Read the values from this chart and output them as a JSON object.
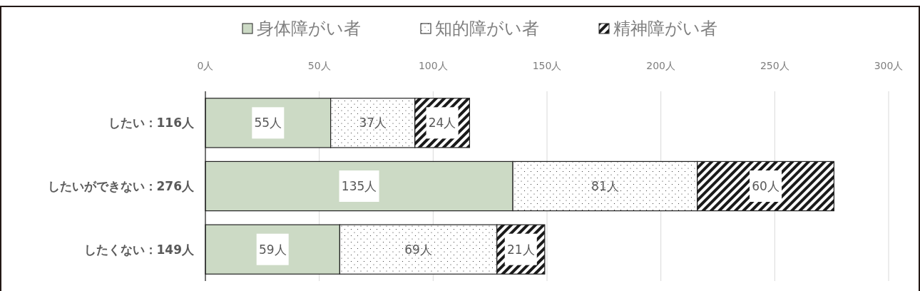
{
  "chart_data": {
    "type": "bar",
    "orientation": "horizontal",
    "stacked": true,
    "categories": [
      "したい：116人",
      "したいができない：276人",
      "したくない：149人"
    ],
    "series": [
      {
        "name": "身体障がい者",
        "color": "#ccdac5",
        "values": [
          55,
          135,
          59
        ],
        "value_labels": [
          "55人",
          "135人",
          "59人"
        ]
      },
      {
        "name": "知的障がい者",
        "color": "#222222",
        "values": [
          37,
          81,
          69
        ],
        "value_labels": [
          "37人",
          "81人",
          "69人"
        ]
      },
      {
        "name": "精神障がい者",
        "color": "#1a1a1a",
        "values": [
          24,
          60,
          21
        ],
        "value_labels": [
          "24人",
          "60人",
          "21人"
        ]
      }
    ],
    "xlim": [
      0,
      300
    ],
    "xticks": [
      {
        "value": 0,
        "label": "0人"
      },
      {
        "value": 50,
        "label": "50人"
      },
      {
        "value": 100,
        "label": "100人"
      },
      {
        "value": 150,
        "label": "150人"
      },
      {
        "value": 200,
        "label": "200人"
      },
      {
        "value": 250,
        "label": "250人"
      },
      {
        "value": 300,
        "label": "300人"
      }
    ],
    "grid": "x",
    "legend": "top"
  }
}
